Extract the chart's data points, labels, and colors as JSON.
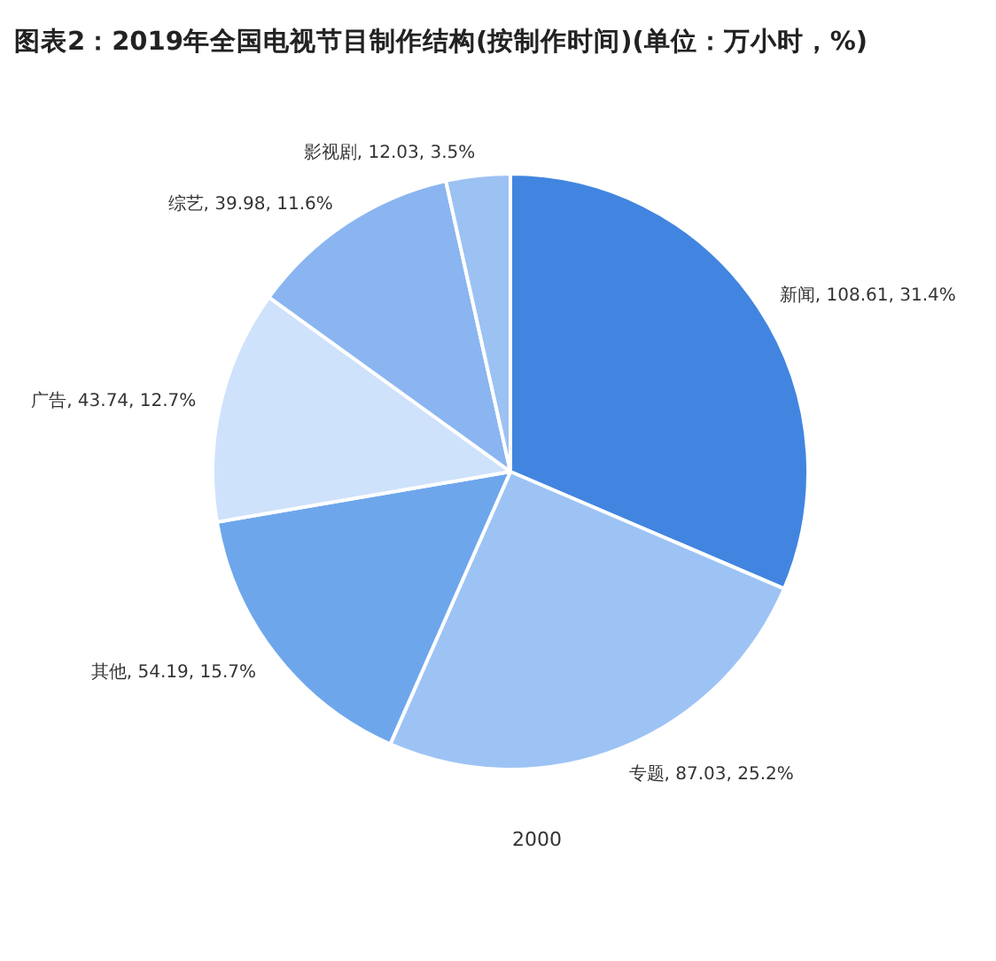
{
  "chart_data": {
    "type": "pie",
    "title": "图表2：2019年全国电视节目制作结构(按制作时间)(单位：万小时，%)",
    "categories": [
      "新闻",
      "专题",
      "其他",
      "广告",
      "综艺",
      "影视剧"
    ],
    "values": [
      108.61,
      87.03,
      54.19,
      43.74,
      39.98,
      12.03
    ],
    "value_labels": [
      "108.61, 31.4%",
      "87.03, 25.2%",
      "54.19, 15.7%",
      "43.74, 12.7%",
      "39.98, 11.6%",
      "12.03, 3.5%"
    ],
    "colors": [
      "#4285e0",
      "#9dc3f5",
      "#6ea6ec",
      "#cfe2fb",
      "#8ab5f0",
      "#9cc1f3"
    ],
    "annotations": [
      "2000"
    ]
  }
}
